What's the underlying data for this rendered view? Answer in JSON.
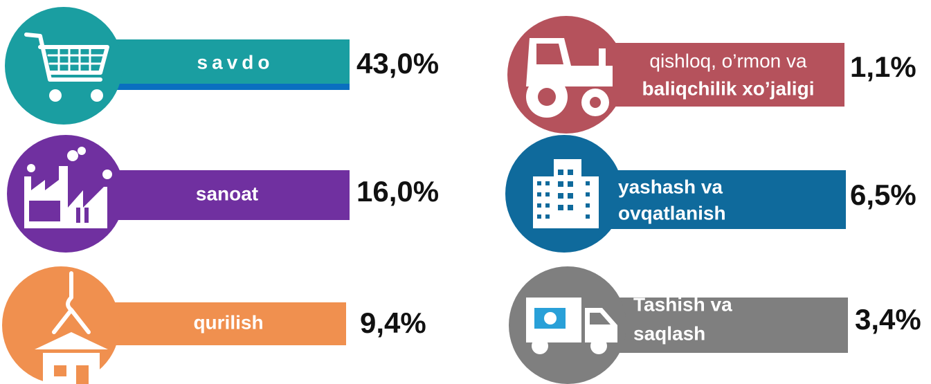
{
  "items": [
    {
      "label": [
        "savdo"
      ],
      "value": "43,0%"
    },
    {
      "label": [
        "sanoat"
      ],
      "value": "16,0%"
    },
    {
      "label": [
        "qurilish"
      ],
      "value": "9,4%"
    },
    {
      "label": [
        "qishloq, o’rmon va",
        "baliqchilik xo’jaligi"
      ],
      "value": "1,1%"
    },
    {
      "label": [
        "yashash va",
        "ovqatlanish"
      ],
      "value": "6,5%"
    },
    {
      "label": [
        "Tashish va",
        "saqlash"
      ],
      "value": "3,4%"
    }
  ]
}
